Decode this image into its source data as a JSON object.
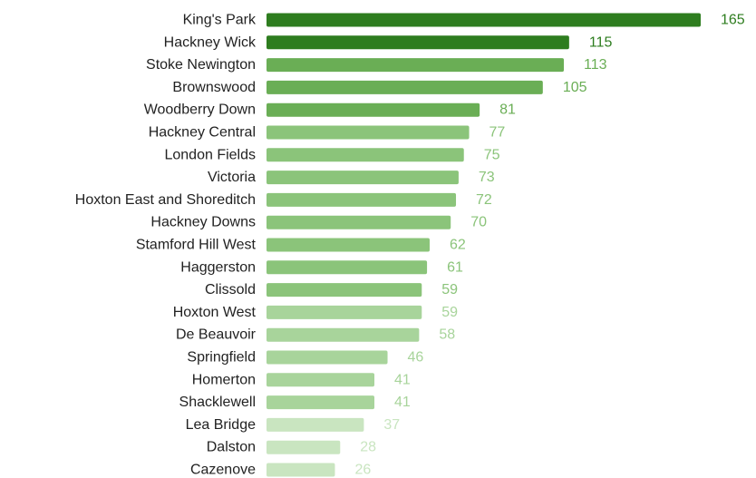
{
  "chart_data": {
    "type": "bar",
    "orientation": "horizontal",
    "title": "",
    "xlabel": "",
    "ylabel": "",
    "grid": false,
    "xlim": [
      0,
      165
    ],
    "categories": [
      "King's Park",
      "Hackney Wick",
      "Stoke Newington",
      "Brownswood",
      "Woodberry Down",
      "Hackney Central",
      "London Fields",
      "Victoria",
      "Hoxton East and Shoreditch",
      "Hackney Downs",
      "Stamford Hill West",
      "Haggerston",
      "Clissold",
      "Hoxton West",
      "De Beauvoir",
      "Springfield",
      "Homerton",
      "Shacklewell",
      "Lea Bridge",
      "Dalston",
      "Cazenove"
    ],
    "values": [
      165,
      115,
      113,
      105,
      81,
      77,
      75,
      73,
      72,
      70,
      62,
      61,
      59,
      59,
      58,
      46,
      41,
      41,
      37,
      28,
      26
    ],
    "value_labels": [
      "165",
      "115",
      "113",
      "105",
      "81",
      "77",
      "75",
      "73",
      "72",
      "70",
      "62",
      "61",
      "59",
      "59",
      "58",
      "46",
      "41",
      "41",
      "37",
      "28",
      "26"
    ],
    "colors": {
      "bars": [
        "#2e7d1f",
        "#2e7d1f",
        "#6aae55",
        "#6aae55",
        "#6aae55",
        "#8bc47a",
        "#8bc47a",
        "#8bc47a",
        "#8bc47a",
        "#8bc47a",
        "#8bc47a",
        "#8bc47a",
        "#8bc47a",
        "#a8d49b",
        "#a8d49b",
        "#a8d49b",
        "#a8d49b",
        "#a8d49b",
        "#c9e5c0",
        "#c9e5c0",
        "#c9e5c0"
      ]
    }
  }
}
